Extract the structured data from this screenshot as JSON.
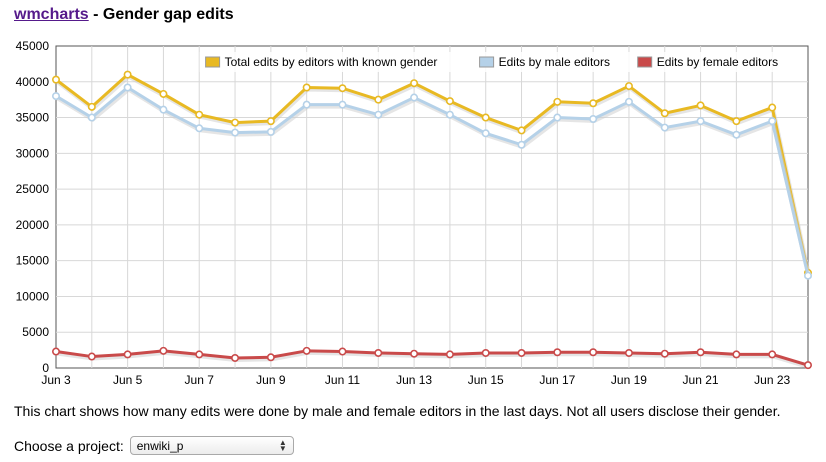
{
  "header": {
    "link_text": "wmcharts",
    "rest": " - Gender gap edits"
  },
  "description": "This chart shows how many edits were done by male and female editors in the last days. Not all users disclose their gender.",
  "project": {
    "label": "Choose a project:",
    "selected": "enwiki_p"
  },
  "chart_data": {
    "type": "line",
    "x": [
      "Jun 3",
      "Jun 4",
      "Jun 5",
      "Jun 6",
      "Jun 7",
      "Jun 8",
      "Jun 9",
      "Jun 10",
      "Jun 11",
      "Jun 12",
      "Jun 13",
      "Jun 14",
      "Jun 15",
      "Jun 16",
      "Jun 17",
      "Jun 18",
      "Jun 19",
      "Jun 20",
      "Jun 21",
      "Jun 22",
      "Jun 23",
      "Jun 24"
    ],
    "tick_labels": [
      "Jun 3",
      "Jun 5",
      "Jun 7",
      "Jun 9",
      "Jun 11",
      "Jun 13",
      "Jun 15",
      "Jun 17",
      "Jun 19",
      "Jun 21",
      "Jun 23"
    ],
    "ylim": [
      0,
      45000
    ],
    "yticks": [
      0,
      5000,
      10000,
      15000,
      20000,
      25000,
      30000,
      35000,
      40000,
      45000
    ],
    "grid": true,
    "legend_position": "top-right",
    "series": [
      {
        "name": "Total edits by editors with known gender",
        "color": "#e8b923",
        "values": [
          40300,
          36500,
          41000,
          38300,
          35400,
          34300,
          34500,
          39200,
          39100,
          37500,
          39800,
          37300,
          35000,
          33200,
          37200,
          37000,
          39400,
          35600,
          36700,
          34500,
          36400,
          13300
        ]
      },
      {
        "name": "Edits by male editors",
        "color": "#b5d1e8",
        "values": [
          38000,
          35000,
          39200,
          36100,
          33500,
          32900,
          33000,
          36800,
          36800,
          35400,
          37800,
          35400,
          32800,
          31200,
          35000,
          34800,
          37200,
          33600,
          34500,
          32600,
          34500,
          12900
        ]
      },
      {
        "name": "Edits by female editors",
        "color": "#c94a4a",
        "values": [
          2300,
          1600,
          1900,
          2400,
          1900,
          1400,
          1500,
          2400,
          2300,
          2100,
          2000,
          1900,
          2100,
          2100,
          2200,
          2200,
          2100,
          2000,
          2200,
          1900,
          1900,
          400
        ]
      }
    ]
  }
}
